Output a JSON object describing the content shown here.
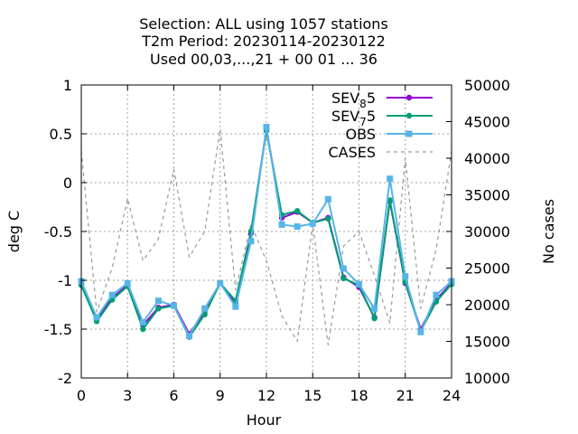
{
  "chart_data": {
    "type": "line",
    "title_lines": [
      "Selection: ALL using  1057 stations",
      "T2m   Period: 20230114-20230122",
      "Used  00,03,...,21  + 00 01 ... 36"
    ],
    "xlabel": "Hour",
    "ylabel": "deg C",
    "y2label": "No cases",
    "xlim": [
      0,
      24
    ],
    "ylim": [
      -2,
      1
    ],
    "y2lim": [
      10000,
      50000
    ],
    "x_ticks": [
      0,
      3,
      6,
      9,
      12,
      15,
      18,
      21,
      24
    ],
    "y_ticks": [
      1,
      0.5,
      0,
      -0.5,
      -1,
      -1.5,
      -2
    ],
    "y_tick_labels": [
      "1",
      "0.5",
      "0",
      "-0.5",
      "-1",
      "-1.5",
      "-2"
    ],
    "y2_ticks": [
      50000,
      45000,
      40000,
      35000,
      30000,
      25000,
      20000,
      15000,
      10000
    ],
    "grid": true,
    "legend_position": "top-right",
    "x": [
      0,
      1,
      2,
      3,
      4,
      5,
      6,
      7,
      8,
      9,
      10,
      11,
      12,
      13,
      14,
      15,
      16,
      17,
      18,
      19,
      20,
      21,
      22,
      23,
      24
    ],
    "series": [
      {
        "name": "SEV_8 5",
        "legend_base": "SEV",
        "legend_sub": "8",
        "legend_tail": "5",
        "color": "#9400d3",
        "marker": "circle",
        "axis": "y",
        "values": [
          -1.03,
          -1.4,
          -1.18,
          -1.05,
          -1.46,
          -1.28,
          -1.25,
          -1.55,
          -1.32,
          -1.03,
          -1.24,
          -0.52,
          0.55,
          -0.36,
          -0.3,
          -0.41,
          -0.36,
          -0.97,
          -1.07,
          -1.38,
          -0.19,
          -1.03,
          -1.5,
          -1.2,
          -1.03
        ]
      },
      {
        "name": "SEV_7 5",
        "legend_base": "SEV",
        "legend_sub": "7",
        "legend_tail": "5",
        "color": "#009e73",
        "marker": "circle",
        "axis": "y",
        "values": [
          -1.05,
          -1.42,
          -1.2,
          -1.06,
          -1.5,
          -1.29,
          -1.26,
          -1.58,
          -1.35,
          -1.03,
          -1.21,
          -0.5,
          0.53,
          -0.33,
          -0.29,
          -0.41,
          -0.37,
          -0.98,
          -1.05,
          -1.39,
          -0.18,
          -1.02,
          -1.52,
          -1.22,
          -1.04
        ]
      },
      {
        "name": "OBS",
        "legend_base": "OBS",
        "legend_sub": "",
        "legend_tail": "",
        "color": "#56b4e9",
        "marker": "square",
        "axis": "y",
        "values": [
          -1.01,
          -1.38,
          -1.15,
          -1.03,
          -1.43,
          -1.21,
          -1.26,
          -1.57,
          -1.29,
          -1.03,
          -1.27,
          -0.6,
          0.57,
          -0.43,
          -0.45,
          -0.42,
          -0.17,
          -0.88,
          -1.04,
          -1.29,
          0.04,
          -0.96,
          -1.53,
          -1.15,
          -1.01
        ]
      },
      {
        "name": "CASES",
        "legend_base": "CASES",
        "legend_sub": "",
        "legend_tail": "",
        "color": "#999999",
        "marker": "none",
        "dashed": true,
        "axis": "y2",
        "values": [
          41000,
          19000,
          25000,
          34500,
          26000,
          29000,
          38500,
          26500,
          30000,
          44000,
          22000,
          31000,
          26000,
          18500,
          15000,
          31000,
          14500,
          28000,
          30000,
          24000,
          17500,
          40000,
          19500,
          27500,
          41000
        ]
      }
    ]
  }
}
